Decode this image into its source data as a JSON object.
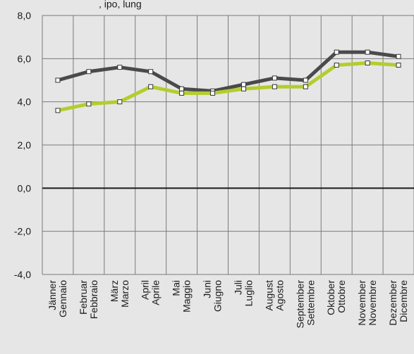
{
  "chart_data": {
    "type": "line",
    "title": ", ipo, lung",
    "categories": [
      [
        "Jänner",
        "Gennaio"
      ],
      [
        "Februar",
        "Febbraio"
      ],
      [
        "März",
        "Marzo"
      ],
      [
        "April",
        "Aprile"
      ],
      [
        "Mai",
        "Maggio"
      ],
      [
        "Juni",
        "Giugno"
      ],
      [
        "Juli",
        "Luglio"
      ],
      [
        "August",
        "Agosto"
      ],
      [
        "September",
        "Settembre"
      ],
      [
        "Oktober",
        "Ottobre"
      ],
      [
        "November",
        "Novembre"
      ],
      [
        "Dezember",
        "Dicembre"
      ]
    ],
    "ylim": [
      -4,
      8
    ],
    "yticks": [
      "8,0",
      "6,0",
      "4,0",
      "2,0",
      "0,0",
      "-2,0",
      "-4,0"
    ],
    "yticks_values": [
      8,
      6,
      4,
      2,
      0,
      -2,
      -4
    ],
    "grid": true,
    "series": [
      {
        "color": "#4a4a4a",
        "values": [
          5.0,
          5.4,
          5.6,
          5.4,
          4.6,
          4.5,
          4.8,
          5.1,
          5.0,
          6.3,
          6.3,
          6.1
        ]
      },
      {
        "color": "#b5cc2e",
        "values": [
          3.6,
          3.9,
          4.0,
          4.7,
          4.4,
          4.4,
          4.6,
          4.7,
          4.7,
          5.7,
          5.8,
          5.7
        ]
      }
    ],
    "zero_line_color": "#1a1a1a"
  }
}
